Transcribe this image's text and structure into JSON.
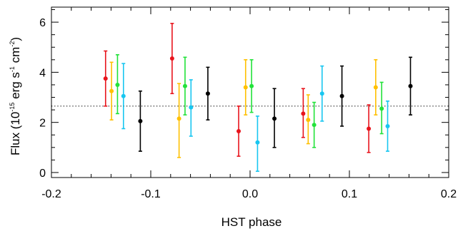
{
  "chart_data": {
    "type": "scatter",
    "xlabel": "HST phase",
    "ylabel_parts": {
      "a": "Flux (10",
      "exp1": "-15",
      "b": " erg s",
      "exp2": "-1",
      "c": " cm",
      "exp3": "-2",
      "d": ")"
    },
    "xlim": [
      -0.2,
      0.2
    ],
    "ylim": [
      -0.2,
      6.6
    ],
    "xticks": [
      -0.2,
      -0.1,
      0.0,
      0.1,
      0.2
    ],
    "xtick_labels": [
      "-0.2",
      "-0.1",
      "0.0",
      "0.1",
      "0.2"
    ],
    "yticks": [
      0,
      2,
      4,
      6
    ],
    "ytick_labels": [
      "0",
      "2",
      "4",
      "6"
    ],
    "reference_line": {
      "y": 2.65,
      "style": "dotted"
    },
    "colors": {
      "red": "#e8141c",
      "yellow": "#ffc000",
      "green": "#22e23a",
      "cyan": "#18c6f0",
      "black": "#000000"
    },
    "points": [
      {
        "x": -0.1455,
        "y": 3.75,
        "lo": 2.65,
        "hi": 4.85,
        "color": "red"
      },
      {
        "x": -0.1395,
        "y": 3.25,
        "lo": 2.1,
        "hi": 4.4,
        "color": "yellow"
      },
      {
        "x": -0.1335,
        "y": 3.5,
        "lo": 2.35,
        "hi": 4.7,
        "color": "green"
      },
      {
        "x": -0.1275,
        "y": 3.05,
        "lo": 1.75,
        "hi": 4.35,
        "color": "cyan"
      },
      {
        "x": -0.1105,
        "y": 2.05,
        "lo": 0.85,
        "hi": 3.25,
        "color": "black"
      },
      {
        "x": -0.0785,
        "y": 4.55,
        "lo": 3.15,
        "hi": 5.95,
        "color": "red"
      },
      {
        "x": -0.0715,
        "y": 2.15,
        "lo": 0.6,
        "hi": 3.55,
        "color": "yellow"
      },
      {
        "x": -0.0655,
        "y": 3.45,
        "lo": 2.3,
        "hi": 4.6,
        "color": "green"
      },
      {
        "x": -0.0595,
        "y": 2.6,
        "lo": 1.45,
        "hi": 3.7,
        "color": "cyan"
      },
      {
        "x": -0.0425,
        "y": 3.15,
        "lo": 2.1,
        "hi": 4.2,
        "color": "black"
      },
      {
        "x": -0.0115,
        "y": 1.65,
        "lo": 0.65,
        "hi": 2.65,
        "color": "red"
      },
      {
        "x": -0.0045,
        "y": 3.4,
        "lo": 2.3,
        "hi": 4.5,
        "color": "yellow"
      },
      {
        "x": 0.0015,
        "y": 3.45,
        "lo": 2.4,
        "hi": 4.5,
        "color": "green"
      },
      {
        "x": 0.0075,
        "y": 1.2,
        "lo": 0.05,
        "hi": 2.25,
        "color": "cyan"
      },
      {
        "x": 0.0245,
        "y": 2.15,
        "lo": 1.0,
        "hi": 3.35,
        "color": "black"
      },
      {
        "x": 0.0535,
        "y": 2.35,
        "lo": 1.4,
        "hi": 3.35,
        "color": "red"
      },
      {
        "x": 0.0585,
        "y": 2.1,
        "lo": 1.15,
        "hi": 3.1,
        "color": "yellow"
      },
      {
        "x": 0.0645,
        "y": 1.9,
        "lo": 1.0,
        "hi": 2.8,
        "color": "green"
      },
      {
        "x": 0.0725,
        "y": 3.15,
        "lo": 2.05,
        "hi": 4.25,
        "color": "cyan"
      },
      {
        "x": 0.0925,
        "y": 3.05,
        "lo": 1.85,
        "hi": 4.25,
        "color": "black"
      },
      {
        "x": 0.1195,
        "y": 1.75,
        "lo": 0.8,
        "hi": 2.7,
        "color": "red"
      },
      {
        "x": 0.1265,
        "y": 3.4,
        "lo": 2.3,
        "hi": 4.5,
        "color": "yellow"
      },
      {
        "x": 0.1325,
        "y": 2.55,
        "lo": 1.55,
        "hi": 3.6,
        "color": "green"
      },
      {
        "x": 0.1385,
        "y": 1.85,
        "lo": 0.85,
        "hi": 2.85,
        "color": "cyan"
      },
      {
        "x": 0.1615,
        "y": 3.45,
        "lo": 2.3,
        "hi": 4.6,
        "color": "black"
      }
    ]
  }
}
